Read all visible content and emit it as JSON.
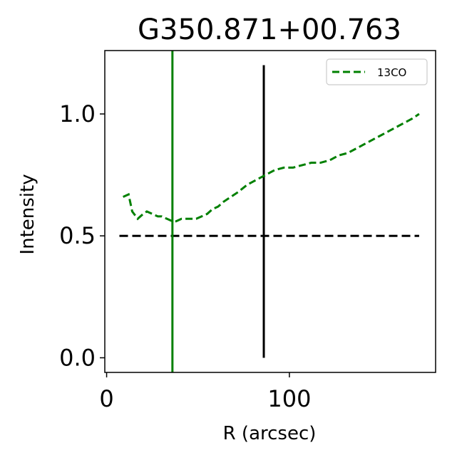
{
  "chart_data": {
    "type": "line",
    "title": "G350.871+00.763",
    "xlabel": "R (arcsec)",
    "ylabel": "Intensity",
    "xlim": [
      -1,
      180
    ],
    "ylim": [
      -0.06,
      1.26
    ],
    "xticks": [
      0,
      100
    ],
    "xtick_labels": [
      "0",
      "100"
    ],
    "yticks": [
      0.0,
      0.5,
      1.0
    ],
    "ytick_labels": [
      "0.0",
      "0.5",
      "1.0"
    ],
    "grid": false,
    "legend": {
      "placement": "top-right",
      "entries": [
        "13CO"
      ]
    },
    "series": [
      {
        "name": "13CO",
        "style": "dashed",
        "color": "#008000",
        "x": [
          9,
          12,
          14,
          17,
          20,
          22,
          25,
          28,
          30,
          33,
          36,
          38,
          41,
          43,
          46,
          49,
          52,
          55,
          58,
          61,
          64,
          68,
          72,
          77,
          82,
          87,
          92,
          97,
          102,
          107,
          112,
          117,
          122,
          127,
          132,
          137,
          142,
          147,
          152,
          157,
          162,
          167,
          171
        ],
        "y": [
          0.66,
          0.67,
          0.6,
          0.57,
          0.59,
          0.6,
          0.59,
          0.58,
          0.58,
          0.57,
          0.56,
          0.56,
          0.57,
          0.57,
          0.57,
          0.57,
          0.58,
          0.59,
          0.61,
          0.62,
          0.64,
          0.66,
          0.68,
          0.71,
          0.73,
          0.75,
          0.77,
          0.78,
          0.78,
          0.79,
          0.8,
          0.8,
          0.81,
          0.83,
          0.84,
          0.86,
          0.88,
          0.9,
          0.92,
          0.94,
          0.96,
          0.98,
          1.0
        ]
      }
    ],
    "reference_lines": [
      {
        "kind": "horizontal",
        "y": 0.5,
        "x_range": [
          7,
          171
        ],
        "color": "#000000",
        "style": "dashed"
      },
      {
        "kind": "vertical",
        "x": 36,
        "color": "#008000",
        "style": "solid",
        "full_height": true
      },
      {
        "kind": "vertical",
        "x": 86,
        "y_range": [
          0.0,
          1.2
        ],
        "color": "#000000",
        "style": "solid"
      }
    ]
  }
}
